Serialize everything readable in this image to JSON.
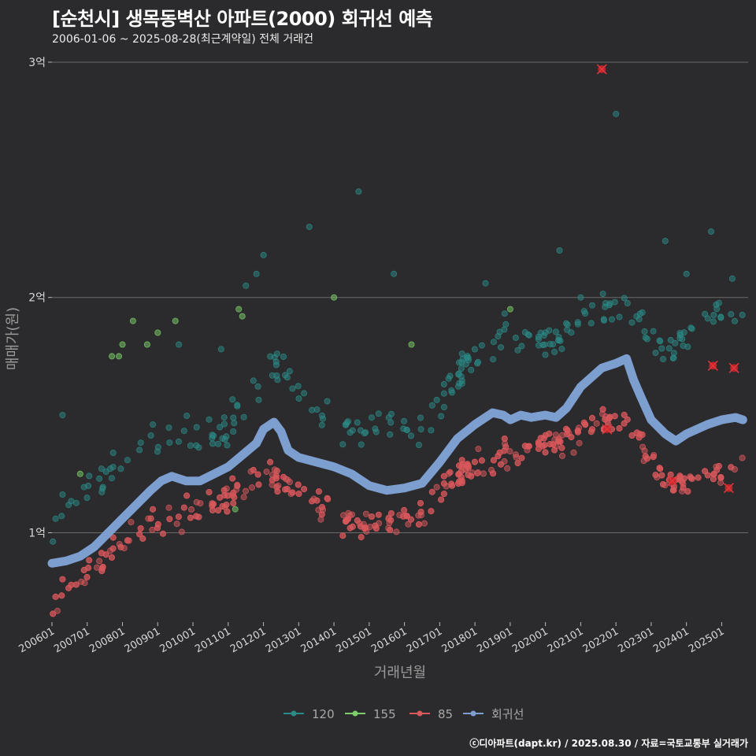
{
  "header": {
    "title": "[순천시] 생목동벽산 아파트(2000) 회귀선 예측",
    "subtitle": "2006-01-06 ~ 2025-08-28(최근계약일) 전체 거래건"
  },
  "caption": "ⓒ디아파트(dapt.kr) / 2025.08.30 / 자료=국토교통부 실거래가",
  "colors": {
    "background": "#2b2a2c",
    "grid": "#6a6a6a",
    "s120": "#2a8a86",
    "s155": "#7ccf6a",
    "s85": "#d9585c",
    "regression": "#7d9fd0",
    "outlier": "#c8252b"
  },
  "chart_data": {
    "type": "scatter",
    "title": "[순천시] 생목동벽산 아파트(2000) 회귀선 예측",
    "xlabel": "거래년월",
    "ylabel": "매매가(원)",
    "xlim": [
      2006.0,
      2025.75
    ],
    "ylim": [
      0.62,
      3.05
    ],
    "y_unit": "억",
    "y_ticks": [
      {
        "value": 1,
        "label": "1억"
      },
      {
        "value": 2,
        "label": "2억"
      },
      {
        "value": 3,
        "label": "3억"
      }
    ],
    "x_ticks": [
      {
        "value": 2006,
        "label": "200601"
      },
      {
        "value": 2007,
        "label": "200701"
      },
      {
        "value": 2008,
        "label": "200801"
      },
      {
        "value": 2009,
        "label": "200901"
      },
      {
        "value": 2010,
        "label": "201001"
      },
      {
        "value": 2011,
        "label": "201101"
      },
      {
        "value": 2012,
        "label": "201201"
      },
      {
        "value": 2013,
        "label": "201301"
      },
      {
        "value": 2014,
        "label": "201401"
      },
      {
        "value": 2015,
        "label": "201501"
      },
      {
        "value": 2016,
        "label": "201601"
      },
      {
        "value": 2017,
        "label": "201701"
      },
      {
        "value": 2018,
        "label": "201801"
      },
      {
        "value": 2019,
        "label": "201901"
      },
      {
        "value": 2020,
        "label": "202001"
      },
      {
        "value": 2021,
        "label": "202101"
      },
      {
        "value": 2022,
        "label": "202201"
      },
      {
        "value": 2023,
        "label": "202301"
      },
      {
        "value": 2024,
        "label": "202401"
      },
      {
        "value": 2025,
        "label": "202501"
      }
    ],
    "legend": [
      "120",
      "155",
      "85",
      "회귀선"
    ],
    "legend_position": "bottom",
    "series": [
      {
        "name": "85",
        "type": "scatter",
        "trend": [
          [
            2006.0,
            0.7
          ],
          [
            2006.5,
            0.75
          ],
          [
            2007.0,
            0.82
          ],
          [
            2007.5,
            0.86
          ],
          [
            2008.0,
            0.94
          ],
          [
            2008.5,
            1.0
          ],
          [
            2009.0,
            1.04
          ],
          [
            2009.5,
            1.06
          ],
          [
            2010.0,
            1.08
          ],
          [
            2010.5,
            1.12
          ],
          [
            2011.0,
            1.15
          ],
          [
            2011.5,
            1.2
          ],
          [
            2012.0,
            1.27
          ],
          [
            2012.5,
            1.22
          ],
          [
            2013.0,
            1.15
          ],
          [
            2013.5,
            1.12
          ],
          [
            2014.0,
            1.09
          ],
          [
            2014.5,
            1.06
          ],
          [
            2015.0,
            1.04
          ],
          [
            2015.5,
            1.02
          ],
          [
            2016.0,
            1.04
          ],
          [
            2016.5,
            1.09
          ],
          [
            2017.0,
            1.2
          ],
          [
            2017.5,
            1.24
          ],
          [
            2018.0,
            1.27
          ],
          [
            2018.5,
            1.3
          ],
          [
            2019.0,
            1.33
          ],
          [
            2019.5,
            1.35
          ],
          [
            2020.0,
            1.36
          ],
          [
            2020.5,
            1.39
          ],
          [
            2021.0,
            1.42
          ],
          [
            2021.5,
            1.46
          ],
          [
            2022.0,
            1.48
          ],
          [
            2022.5,
            1.44
          ],
          [
            2023.0,
            1.3
          ],
          [
            2023.5,
            1.2
          ],
          [
            2024.0,
            1.2
          ],
          [
            2024.5,
            1.24
          ],
          [
            2025.0,
            1.26
          ],
          [
            2025.6,
            1.3
          ]
        ],
        "spread": 0.065,
        "count": 560,
        "highlighted": [
          [
            2021.75,
            1.44
          ],
          [
            2023.6,
            1.22
          ],
          [
            2025.2,
            1.19
          ]
        ]
      },
      {
        "name": "120",
        "type": "scatter",
        "trend": [
          [
            2006.0,
            1.02
          ],
          [
            2006.5,
            1.1
          ],
          [
            2007.0,
            1.16
          ],
          [
            2007.5,
            1.2
          ],
          [
            2008.0,
            1.27
          ],
          [
            2008.5,
            1.36
          ],
          [
            2009.0,
            1.37
          ],
          [
            2009.5,
            1.38
          ],
          [
            2010.0,
            1.39
          ],
          [
            2010.5,
            1.41
          ],
          [
            2011.0,
            1.45
          ],
          [
            2011.5,
            1.56
          ],
          [
            2012.0,
            1.65
          ],
          [
            2012.5,
            1.74
          ],
          [
            2013.0,
            1.55
          ],
          [
            2013.5,
            1.5
          ],
          [
            2014.0,
            1.5
          ],
          [
            2014.5,
            1.48
          ],
          [
            2015.0,
            1.45
          ],
          [
            2015.5,
            1.44
          ],
          [
            2016.0,
            1.4
          ],
          [
            2016.5,
            1.44
          ],
          [
            2017.0,
            1.57
          ],
          [
            2017.5,
            1.66
          ],
          [
            2018.0,
            1.74
          ],
          [
            2018.5,
            1.8
          ],
          [
            2019.0,
            1.84
          ],
          [
            2019.5,
            1.82
          ],
          [
            2020.0,
            1.78
          ],
          [
            2020.5,
            1.82
          ],
          [
            2021.0,
            1.88
          ],
          [
            2021.5,
            1.93
          ],
          [
            2022.0,
            1.96
          ],
          [
            2022.5,
            1.93
          ],
          [
            2023.0,
            1.82
          ],
          [
            2023.5,
            1.75
          ],
          [
            2024.0,
            1.82
          ],
          [
            2024.5,
            1.9
          ],
          [
            2025.0,
            1.95
          ],
          [
            2025.6,
            1.9
          ]
        ],
        "spread": 0.085,
        "count": 240,
        "extra": [
          [
            2006.3,
            1.5
          ],
          [
            2009.6,
            1.8
          ],
          [
            2010.8,
            1.78
          ],
          [
            2011.5,
            2.05
          ],
          [
            2011.8,
            2.1
          ],
          [
            2012.0,
            2.18
          ],
          [
            2013.3,
            2.3
          ],
          [
            2014.7,
            2.45
          ],
          [
            2015.7,
            2.1
          ],
          [
            2018.3,
            2.06
          ],
          [
            2020.4,
            2.2
          ],
          [
            2021.0,
            2.0
          ],
          [
            2022.0,
            2.78
          ],
          [
            2023.4,
            2.24
          ],
          [
            2024.0,
            2.1
          ],
          [
            2024.7,
            2.28
          ],
          [
            2025.3,
            2.08
          ]
        ],
        "highlighted": [
          [
            2021.6,
            2.97
          ],
          [
            2024.75,
            1.71
          ],
          [
            2025.35,
            1.7
          ]
        ]
      },
      {
        "name": "155",
        "type": "scatter",
        "points": [
          [
            2006.8,
            1.25
          ],
          [
            2007.7,
            1.75
          ],
          [
            2007.9,
            1.75
          ],
          [
            2008.0,
            1.8
          ],
          [
            2008.3,
            1.9
          ],
          [
            2008.7,
            1.8
          ],
          [
            2009.0,
            1.85
          ],
          [
            2009.5,
            1.9
          ],
          [
            2011.2,
            1.1
          ],
          [
            2011.3,
            1.95
          ],
          [
            2011.4,
            1.92
          ],
          [
            2014.0,
            2.0
          ],
          [
            2016.2,
            1.8
          ],
          [
            2019.0,
            1.95
          ]
        ]
      },
      {
        "name": "회귀선",
        "type": "line",
        "points": [
          [
            2006.0,
            0.87
          ],
          [
            2006.4,
            0.88
          ],
          [
            2006.8,
            0.9
          ],
          [
            2007.2,
            0.94
          ],
          [
            2007.6,
            1.0
          ],
          [
            2008.0,
            1.06
          ],
          [
            2008.4,
            1.12
          ],
          [
            2008.8,
            1.18
          ],
          [
            2009.1,
            1.22
          ],
          [
            2009.4,
            1.24
          ],
          [
            2009.8,
            1.22
          ],
          [
            2010.2,
            1.22
          ],
          [
            2010.6,
            1.25
          ],
          [
            2011.0,
            1.28
          ],
          [
            2011.4,
            1.33
          ],
          [
            2011.8,
            1.38
          ],
          [
            2012.0,
            1.44
          ],
          [
            2012.3,
            1.47
          ],
          [
            2012.5,
            1.43
          ],
          [
            2012.7,
            1.35
          ],
          [
            2013.0,
            1.32
          ],
          [
            2013.5,
            1.3
          ],
          [
            2014.0,
            1.28
          ],
          [
            2014.5,
            1.25
          ],
          [
            2015.0,
            1.2
          ],
          [
            2015.5,
            1.18
          ],
          [
            2016.0,
            1.19
          ],
          [
            2016.5,
            1.21
          ],
          [
            2017.0,
            1.3
          ],
          [
            2017.5,
            1.4
          ],
          [
            2018.0,
            1.46
          ],
          [
            2018.5,
            1.51
          ],
          [
            2018.8,
            1.5
          ],
          [
            2019.0,
            1.48
          ],
          [
            2019.3,
            1.5
          ],
          [
            2019.6,
            1.49
          ],
          [
            2020.0,
            1.5
          ],
          [
            2020.3,
            1.49
          ],
          [
            2020.6,
            1.53
          ],
          [
            2021.0,
            1.62
          ],
          [
            2021.3,
            1.66
          ],
          [
            2021.6,
            1.7
          ],
          [
            2022.0,
            1.72
          ],
          [
            2022.3,
            1.74
          ],
          [
            2022.5,
            1.65
          ],
          [
            2022.7,
            1.58
          ],
          [
            2023.0,
            1.48
          ],
          [
            2023.4,
            1.42
          ],
          [
            2023.7,
            1.39
          ],
          [
            2024.0,
            1.42
          ],
          [
            2024.3,
            1.44
          ],
          [
            2024.6,
            1.46
          ],
          [
            2025.0,
            1.48
          ],
          [
            2025.4,
            1.49
          ],
          [
            2025.6,
            1.48
          ]
        ]
      }
    ]
  }
}
